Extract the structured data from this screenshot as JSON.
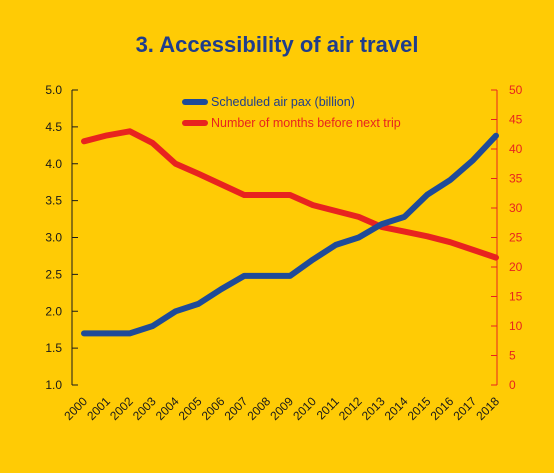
{
  "chart_data": {
    "type": "line",
    "title": "3. Accessibility of air travel",
    "x": [
      "2000",
      "2001",
      "2002",
      "2003",
      "2004",
      "2005",
      "2006",
      "2007",
      "2008",
      "2009",
      "2010",
      "2011",
      "2012",
      "2013",
      "2014",
      "2015",
      "2016",
      "2017",
      "2018"
    ],
    "y_left": {
      "ylim": [
        1.0,
        5.0
      ],
      "ticks": [
        "1.0",
        "1.5",
        "2.0",
        "2.5",
        "3.0",
        "3.5",
        "4.0",
        "4.5",
        "5.0"
      ],
      "color": "#1a1a1a"
    },
    "y_right": {
      "ylim": [
        0,
        50
      ],
      "ticks": [
        "0",
        "5",
        "10",
        "15",
        "20",
        "25",
        "30",
        "35",
        "40",
        "45",
        "50"
      ],
      "color": "#E8231F"
    },
    "legend_position": "top-center",
    "series": [
      {
        "name": "Scheduled air pax (billion)",
        "axis": "left",
        "color": "#1F4B99",
        "values": [
          1.7,
          1.7,
          1.7,
          1.8,
          2.0,
          2.1,
          2.3,
          2.48,
          2.48,
          2.48,
          2.7,
          2.9,
          3.0,
          3.18,
          3.28,
          3.58,
          3.78,
          4.05,
          4.38
        ]
      },
      {
        "name": "Number of months before next trip",
        "axis": "right",
        "color": "#E8231F",
        "values": [
          41.3,
          42.3,
          43.0,
          41.0,
          37.5,
          35.8,
          34.0,
          32.2,
          32.2,
          32.2,
          30.5,
          29.5,
          28.5,
          26.8,
          26.0,
          25.2,
          24.2,
          22.9,
          21.6
        ]
      }
    ]
  }
}
